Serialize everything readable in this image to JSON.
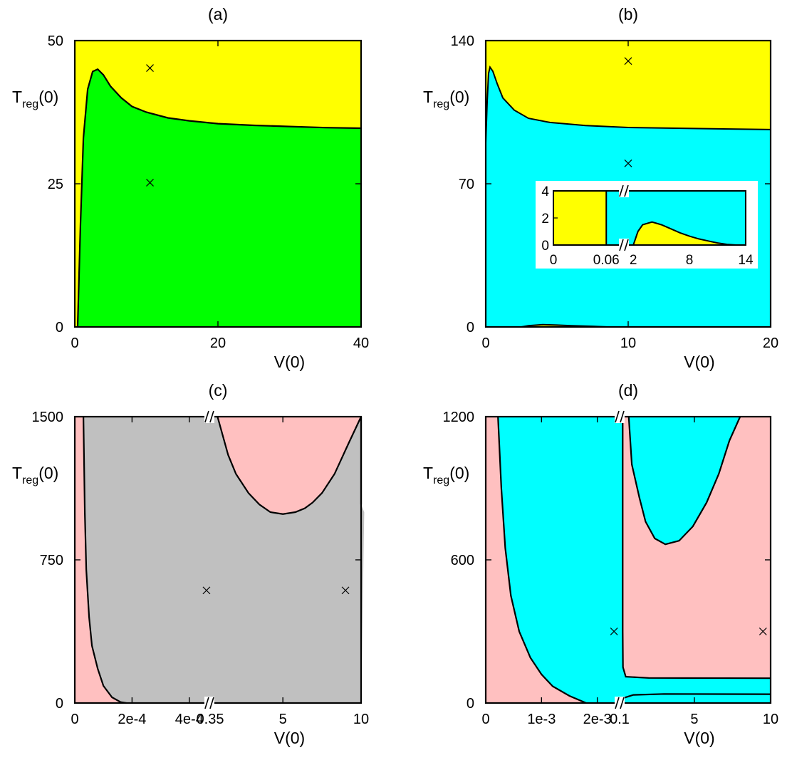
{
  "colors": {
    "yellow": "#ffff00",
    "green": "#00ff00",
    "cyan": "#00ffff",
    "pink": "#ffc0c0",
    "gray": "#c0c0c0",
    "boundary": "#000000"
  },
  "chart_data": [
    {
      "panel": "a",
      "type": "heatmap",
      "title": "(a)",
      "xlabel": "V(0)",
      "ylabel": {
        "main": "T",
        "sub": "reg",
        "suffix": "(0)"
      },
      "xlim": [
        0,
        40
      ],
      "ylim": [
        0,
        50
      ],
      "xticks": [
        "0",
        "20",
        "40"
      ],
      "yticks": [
        "0",
        "25",
        "50"
      ],
      "background_region": "yellow",
      "regions": [
        {
          "color": "green",
          "boundary": [
            [
              0.4,
              0
            ],
            [
              0.8,
              18
            ],
            [
              1.2,
              33
            ],
            [
              1.8,
              41.5
            ],
            [
              2.5,
              44.6
            ],
            [
              3.2,
              45
            ],
            [
              4,
              44
            ],
            [
              5,
              42
            ],
            [
              6.5,
              40
            ],
            [
              8,
              38.5
            ],
            [
              10,
              37.5
            ],
            [
              13,
              36.5
            ],
            [
              16,
              36
            ],
            [
              20,
              35.5
            ],
            [
              25,
              35.2
            ],
            [
              30,
              35
            ],
            [
              35,
              34.8
            ],
            [
              40,
              34.7
            ],
            [
              40,
              0
            ]
          ]
        }
      ],
      "markers": [
        [
          10.5,
          45.2
        ],
        [
          10.5,
          25.2
        ]
      ]
    },
    {
      "panel": "b",
      "type": "heatmap",
      "title": "(b)",
      "xlabel": "V(0)",
      "ylabel": {
        "main": "T",
        "sub": "reg",
        "suffix": "(0)"
      },
      "xlim": [
        0,
        20
      ],
      "ylim": [
        0,
        140
      ],
      "xticks": [
        "0",
        "10",
        "20"
      ],
      "yticks": [
        "0",
        "70",
        "140"
      ],
      "background_region": "cyan",
      "regions": [
        {
          "color": "yellow",
          "boundary": [
            [
              0,
              140
            ],
            [
              0,
              90
            ],
            [
              0.1,
              110
            ],
            [
              0.2,
              124
            ],
            [
              0.3,
              127
            ],
            [
              0.5,
              125
            ],
            [
              0.8,
              119
            ],
            [
              1.2,
              112
            ],
            [
              2,
              106
            ],
            [
              3,
              102
            ],
            [
              4.5,
              100
            ],
            [
              7,
              98.5
            ],
            [
              10,
              97.5
            ],
            [
              15,
              97
            ],
            [
              20,
              96.5
            ],
            [
              20,
              140
            ]
          ]
        },
        {
          "color": "yellow",
          "boundary": [
            [
              2.5,
              0
            ],
            [
              3,
              0.6
            ],
            [
              4,
              1.1
            ],
            [
              5,
              0.9
            ],
            [
              6,
              0.6
            ],
            [
              7.5,
              0.3
            ],
            [
              8.5,
              0
            ]
          ]
        }
      ],
      "markers": [
        [
          10,
          130
        ],
        [
          10,
          80
        ]
      ],
      "inset": {
        "yticks": [
          "0",
          "2",
          "4"
        ],
        "ylim": [
          0,
          4
        ],
        "left_segment": {
          "xlim": [
            0,
            0.08
          ],
          "xticks": [
            "0",
            "0.06"
          ],
          "yellow_until": 0.06
        },
        "right_segment": {
          "xlim": [
            1,
            14
          ],
          "xticks": [
            "2",
            "8",
            "14"
          ],
          "yellow_bump": [
            [
              2,
              0
            ],
            [
              2.5,
              1
            ],
            [
              3,
              1.5
            ],
            [
              4,
              1.7
            ],
            [
              5,
              1.5
            ],
            [
              6,
              1.2
            ],
            [
              7,
              0.9
            ],
            [
              8,
              0.65
            ],
            [
              9,
              0.45
            ],
            [
              10,
              0.3
            ],
            [
              11,
              0.15
            ],
            [
              12,
              0.05
            ],
            [
              13,
              0
            ]
          ]
        }
      }
    },
    {
      "panel": "c",
      "type": "heatmap",
      "title": "(c)",
      "xlabel": "V(0)",
      "ylabel": {
        "main": "T",
        "sub": "reg",
        "suffix": "(0)"
      },
      "ylim": [
        0,
        1500
      ],
      "yticks": [
        "0",
        "750",
        "1500"
      ],
      "axis_break": true,
      "x_segments": [
        {
          "range": [
            0,
            0.00047
          ],
          "ticks": [
            {
              "v": 0,
              "label": "0"
            },
            {
              "v": 0.0002,
              "label": "2e-4"
            },
            {
              "v": 0.0004,
              "label": "4e-4"
            }
          ]
        },
        {
          "range": [
            0.3,
            10
          ],
          "ticks": [
            {
              "v": 0.35,
              "label": "0.35"
            },
            {
              "v": 5,
              "label": "5"
            },
            {
              "v": 10,
              "label": "10"
            }
          ]
        }
      ],
      "background_region": "pink",
      "regions": [
        {
          "color": "gray",
          "left_boundary": [
            [
              3e-05,
              1500
            ],
            [
              3.5e-05,
              1000
            ],
            [
              4e-05,
              700
            ],
            [
              5e-05,
              450
            ],
            [
              6e-05,
              300
            ],
            [
              8e-05,
              180
            ],
            [
              0.0001,
              90
            ],
            [
              0.00013,
              30
            ],
            [
              0.00016,
              5
            ],
            [
              0.00018,
              0
            ]
          ],
          "right_boundary": [
            [
              0.82,
              1500
            ],
            [
              1.5,
              1300
            ],
            [
              2.0,
              1200
            ],
            [
              2.8,
              1100
            ],
            [
              3.5,
              1040
            ],
            [
              4.2,
              1000
            ],
            [
              5.0,
              990
            ],
            [
              5.8,
              1000
            ],
            [
              6.4,
              1020
            ],
            [
              6.9,
              1050
            ],
            [
              7.5,
              1100
            ],
            [
              8.3,
              1200
            ],
            [
              9.2,
              1360
            ],
            [
              10,
              1500
            ],
            [
              10,
              1040
            ],
            [
              10.2,
              1000
            ]
          ]
        }
      ],
      "markers": [
        [
          0.00046,
          590
        ],
        [
          9.0,
          590
        ]
      ]
    },
    {
      "panel": "d",
      "type": "heatmap",
      "title": "(d)",
      "xlabel": "V(0)",
      "ylabel": {
        "main": "T",
        "sub": "reg",
        "suffix": "(0)"
      },
      "ylim": [
        0,
        1200
      ],
      "yticks": [
        "0",
        "600",
        "1200"
      ],
      "axis_break": true,
      "x_segments": [
        {
          "range": [
            0,
            0.0024
          ],
          "ticks": [
            {
              "v": 0,
              "label": "0"
            },
            {
              "v": 0.001,
              "label": "1e-3"
            },
            {
              "v": 0.002,
              "label": "2e-3"
            }
          ]
        },
        {
          "range": [
            0.1,
            10
          ],
          "ticks": [
            {
              "v": 0.1,
              "label": "0.1"
            },
            {
              "v": 5,
              "label": "5"
            },
            {
              "v": 10,
              "label": "10"
            }
          ]
        }
      ],
      "background_region": "pink",
      "regions": [
        {
          "color": "cyan",
          "left_boundary": [
            [
              0.00022,
              1200
            ],
            [
              0.00028,
              900
            ],
            [
              0.00035,
              650
            ],
            [
              0.00045,
              450
            ],
            [
              0.0006,
              300
            ],
            [
              0.0008,
              190
            ],
            [
              0.001,
              120
            ],
            [
              0.0012,
              70
            ],
            [
              0.0015,
              30
            ],
            [
              0.0018,
              0
            ]
          ],
          "right_boundary": [
            [
              0.3,
              1200
            ],
            [
              0.3,
              300
            ],
            [
              0.32,
              150
            ],
            [
              0.5,
              110
            ],
            [
              2,
              105
            ],
            [
              10,
              104
            ]
          ]
        },
        {
          "color": "cyan",
          "boundary": [
            [
              0.7,
              1200
            ],
            [
              0.9,
              1000
            ],
            [
              1.4,
              860
            ],
            [
              1.8,
              760
            ],
            [
              2.4,
              690
            ],
            [
              3.1,
              665
            ],
            [
              4.0,
              680
            ],
            [
              4.9,
              740
            ],
            [
              5.8,
              840
            ],
            [
              6.6,
              960
            ],
            [
              7.3,
              1100
            ],
            [
              8.0,
              1200
            ]
          ]
        },
        {
          "color": "cyan",
          "boundary": [
            [
              0.1,
              0
            ],
            [
              0.3,
              20
            ],
            [
              1,
              34
            ],
            [
              3,
              38
            ],
            [
              10,
              37
            ],
            [
              10,
              0
            ]
          ]
        }
      ],
      "markers": [
        [
          0.0023,
          300
        ],
        [
          9.5,
          300
        ]
      ]
    }
  ]
}
